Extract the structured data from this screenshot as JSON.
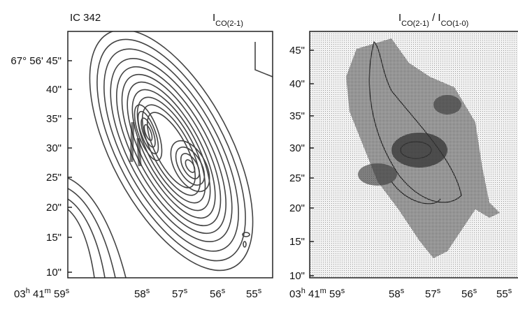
{
  "left_panel": {
    "label": "IC 342",
    "title": {
      "main": "I",
      "sub": "CO(2-1)"
    },
    "y_ticks": [
      "67° 56' 45\"",
      "40\"",
      "35\"",
      "30\"",
      "25\"",
      "20\"",
      "15\"",
      "10\""
    ],
    "x_ticks": [
      [
        "03",
        "h",
        " 41",
        "m",
        " 59",
        "s"
      ],
      [
        "58",
        "s"
      ],
      [
        "57",
        "s"
      ],
      [
        "56",
        "s"
      ],
      [
        "55",
        "s"
      ]
    ]
  },
  "right_panel": {
    "title": [
      "I",
      "CO(2-1)",
      " / ",
      "I",
      "CO(1-0)"
    ],
    "y_ticks": [
      "45\"",
      "40\"",
      "35\"",
      "30\"",
      "25\"",
      "20\"",
      "15\"",
      "10\""
    ],
    "x_ticks": [
      [
        "03",
        "h",
        " 41",
        "m",
        " 59",
        "s"
      ],
      [
        "58",
        "s"
      ],
      [
        "57",
        "s"
      ],
      [
        "56",
        "s"
      ],
      [
        "55",
        "s"
      ]
    ]
  }
}
